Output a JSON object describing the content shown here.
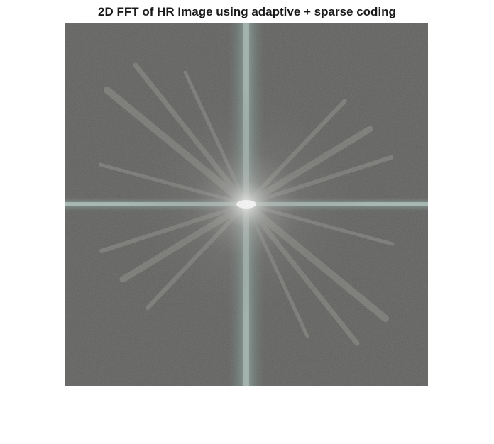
{
  "figure": {
    "title": "2D FFT of HR Image using adaptive + sparse coding",
    "image": {
      "kind": "fft-magnitude-spectrum",
      "description_colors": {
        "background": "#5f5f5d",
        "cross_axis": "#7d918c",
        "center_glow": "#f2f2f0"
      }
    }
  }
}
